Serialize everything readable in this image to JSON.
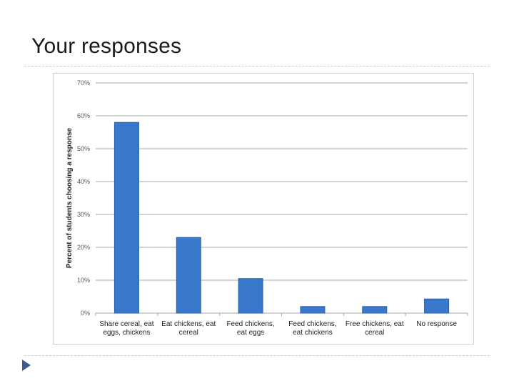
{
  "slide": {
    "title": "Your responses"
  },
  "theme": {
    "bar_color": "#3a78cc",
    "bar_edge": "#2a5fa8",
    "grid_color": "#a8a8a8",
    "nav_color": "#3d5a8a"
  },
  "nav": {
    "icon": "play-triangle-icon"
  },
  "chart_data": {
    "type": "bar",
    "ylabel": "Percent of students choosing a response",
    "xlabel": "",
    "ylim": [
      0,
      70
    ],
    "yticks": [
      "0%",
      "10%",
      "20%",
      "30%",
      "40%",
      "50%",
      "60%",
      "70%"
    ],
    "grid": true,
    "legend": "none",
    "categories": [
      [
        "Share cereal, eat",
        "eggs, chickens"
      ],
      [
        "Eat chickens, eat",
        "cereal"
      ],
      [
        "Feed chickens,",
        "eat eggs"
      ],
      [
        "Feed chickens,",
        "eat chickens"
      ],
      [
        "Free chickens, eat",
        "cereal"
      ],
      [
        "No response"
      ]
    ],
    "values": [
      58,
      23,
      10.5,
      2,
      2,
      4.3
    ]
  }
}
